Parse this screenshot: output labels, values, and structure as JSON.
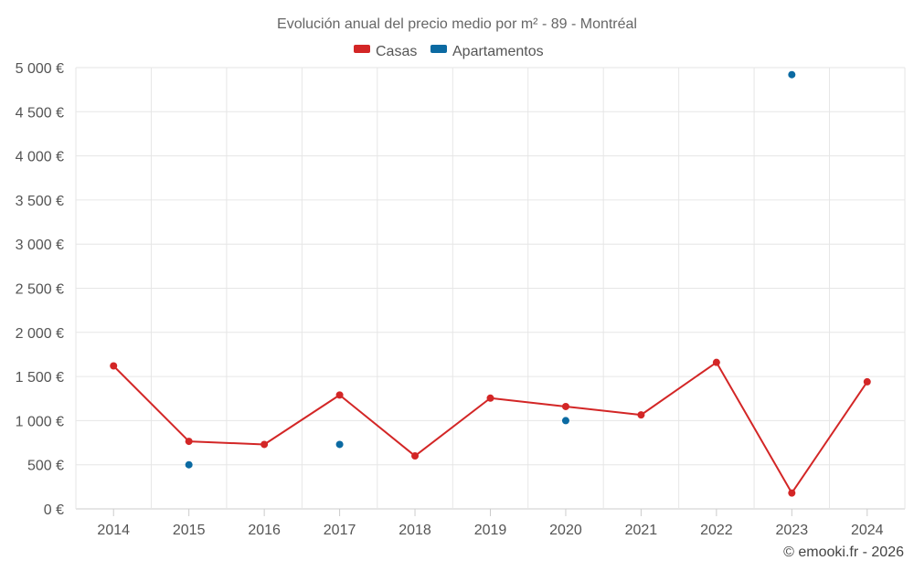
{
  "chart_data": {
    "type": "line",
    "title": "Evolución anual del precio medio por m² - 89 - Montréal",
    "categories": [
      "2014",
      "2015",
      "2016",
      "2017",
      "2018",
      "2019",
      "2020",
      "2021",
      "2022",
      "2023",
      "2024"
    ],
    "series": [
      {
        "name": "Casas",
        "color": "#d32626",
        "style": "line-with-markers",
        "values": [
          1620,
          765,
          730,
          1290,
          600,
          1255,
          1160,
          1065,
          1660,
          180,
          1440
        ]
      },
      {
        "name": "Apartamentos",
        "color": "#0b6aa2",
        "style": "markers-only",
        "values": [
          null,
          500,
          null,
          730,
          null,
          null,
          1000,
          null,
          null,
          4920,
          null
        ]
      }
    ],
    "y_ticks": [
      0,
      500,
      1000,
      1500,
      2000,
      2500,
      3000,
      3500,
      4000,
      4500,
      5000
    ],
    "y_tick_labels": [
      "0 €",
      "500 €",
      "1 000 €",
      "1 500 €",
      "2 000 €",
      "2 500 €",
      "3 000 €",
      "3 500 €",
      "4 000 €",
      "4 500 €",
      "5 000 €"
    ],
    "ylim": [
      0,
      5000
    ],
    "xlabel": "",
    "ylabel": "",
    "grid": true,
    "legend_position": "top-center"
  },
  "credit": "© emooki.fr - 2026"
}
